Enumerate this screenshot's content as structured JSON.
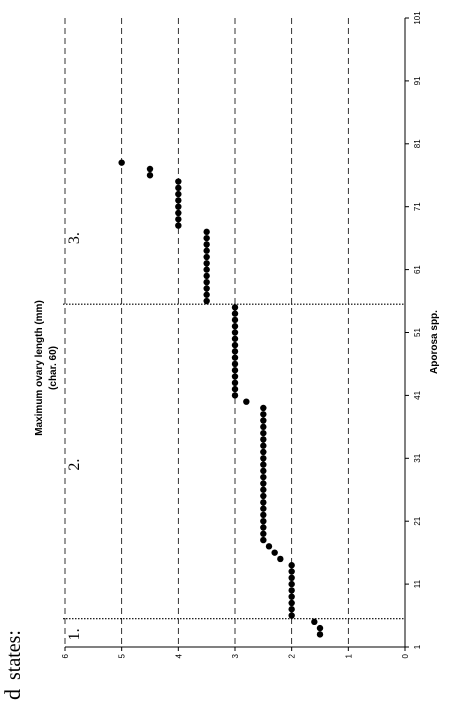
{
  "panel_label": "d",
  "states_label": "states:",
  "chart_data": {
    "type": "scatter",
    "title": "",
    "xlabel": "Aporosa spp.",
    "ylabel": "Maximum ovary length (mm)",
    "ylabel_sub": "(char. 60)",
    "xlim": [
      1,
      101
    ],
    "ylim": [
      0,
      6
    ],
    "x_ticks": [
      "1",
      "11",
      "21",
      "31",
      "41",
      "51",
      "61",
      "71",
      "81",
      "91",
      "101"
    ],
    "y_ticks": [
      "0",
      "1",
      "2",
      "3",
      "4",
      "5",
      "6"
    ],
    "y_tick_values": [
      0,
      1,
      2,
      3,
      4,
      5,
      6
    ],
    "x_tick_values": [
      1,
      11,
      21,
      31,
      41,
      51,
      61,
      71,
      81,
      91,
      101
    ],
    "grid": "horizontal dashed lines at each integer y",
    "state_boundaries": [
      5.5,
      55.5
    ],
    "state_labels": [
      {
        "label": "1.",
        "x_center": 3
      },
      {
        "label": "2.",
        "x_center": 30
      },
      {
        "label": "3.",
        "x_center": 66
      }
    ],
    "points": [
      [
        3,
        1.5
      ],
      [
        4,
        1.5
      ],
      [
        5,
        1.6
      ],
      [
        6,
        2.0
      ],
      [
        7,
        2.0
      ],
      [
        8,
        2.0
      ],
      [
        9,
        2.0
      ],
      [
        10,
        2.0
      ],
      [
        11,
        2.0
      ],
      [
        12,
        2.0
      ],
      [
        13,
        2.0
      ],
      [
        14,
        2.0
      ],
      [
        15,
        2.2
      ],
      [
        16,
        2.3
      ],
      [
        17,
        2.4
      ],
      [
        18,
        2.5
      ],
      [
        19,
        2.5
      ],
      [
        20,
        2.5
      ],
      [
        21,
        2.5
      ],
      [
        22,
        2.5
      ],
      [
        23,
        2.5
      ],
      [
        24,
        2.5
      ],
      [
        25,
        2.5
      ],
      [
        26,
        2.5
      ],
      [
        27,
        2.5
      ],
      [
        28,
        2.5
      ],
      [
        29,
        2.5
      ],
      [
        30,
        2.5
      ],
      [
        31,
        2.5
      ],
      [
        32,
        2.5
      ],
      [
        33,
        2.5
      ],
      [
        34,
        2.5
      ],
      [
        35,
        2.5
      ],
      [
        36,
        2.5
      ],
      [
        37,
        2.5
      ],
      [
        38,
        2.5
      ],
      [
        39,
        2.5
      ],
      [
        40,
        2.8
      ],
      [
        41,
        3.0
      ],
      [
        42,
        3.0
      ],
      [
        43,
        3.0
      ],
      [
        44,
        3.0
      ],
      [
        45,
        3.0
      ],
      [
        46,
        3.0
      ],
      [
        47,
        3.0
      ],
      [
        48,
        3.0
      ],
      [
        49,
        3.0
      ],
      [
        50,
        3.0
      ],
      [
        51,
        3.0
      ],
      [
        52,
        3.0
      ],
      [
        53,
        3.0
      ],
      [
        54,
        3.0
      ],
      [
        55,
        3.0
      ],
      [
        56,
        3.5
      ],
      [
        57,
        3.5
      ],
      [
        58,
        3.5
      ],
      [
        59,
        3.5
      ],
      [
        60,
        3.5
      ],
      [
        61,
        3.5
      ],
      [
        62,
        3.5
      ],
      [
        63,
        3.5
      ],
      [
        64,
        3.5
      ],
      [
        65,
        3.5
      ],
      [
        66,
        3.5
      ],
      [
        67,
        3.5
      ],
      [
        68,
        4.0
      ],
      [
        69,
        4.0
      ],
      [
        70,
        4.0
      ],
      [
        71,
        4.0
      ],
      [
        72,
        4.0
      ],
      [
        73,
        4.0
      ],
      [
        74,
        4.0
      ],
      [
        75,
        4.0
      ],
      [
        76,
        4.5
      ],
      [
        77,
        4.5
      ],
      [
        78,
        5.0
      ]
    ]
  }
}
